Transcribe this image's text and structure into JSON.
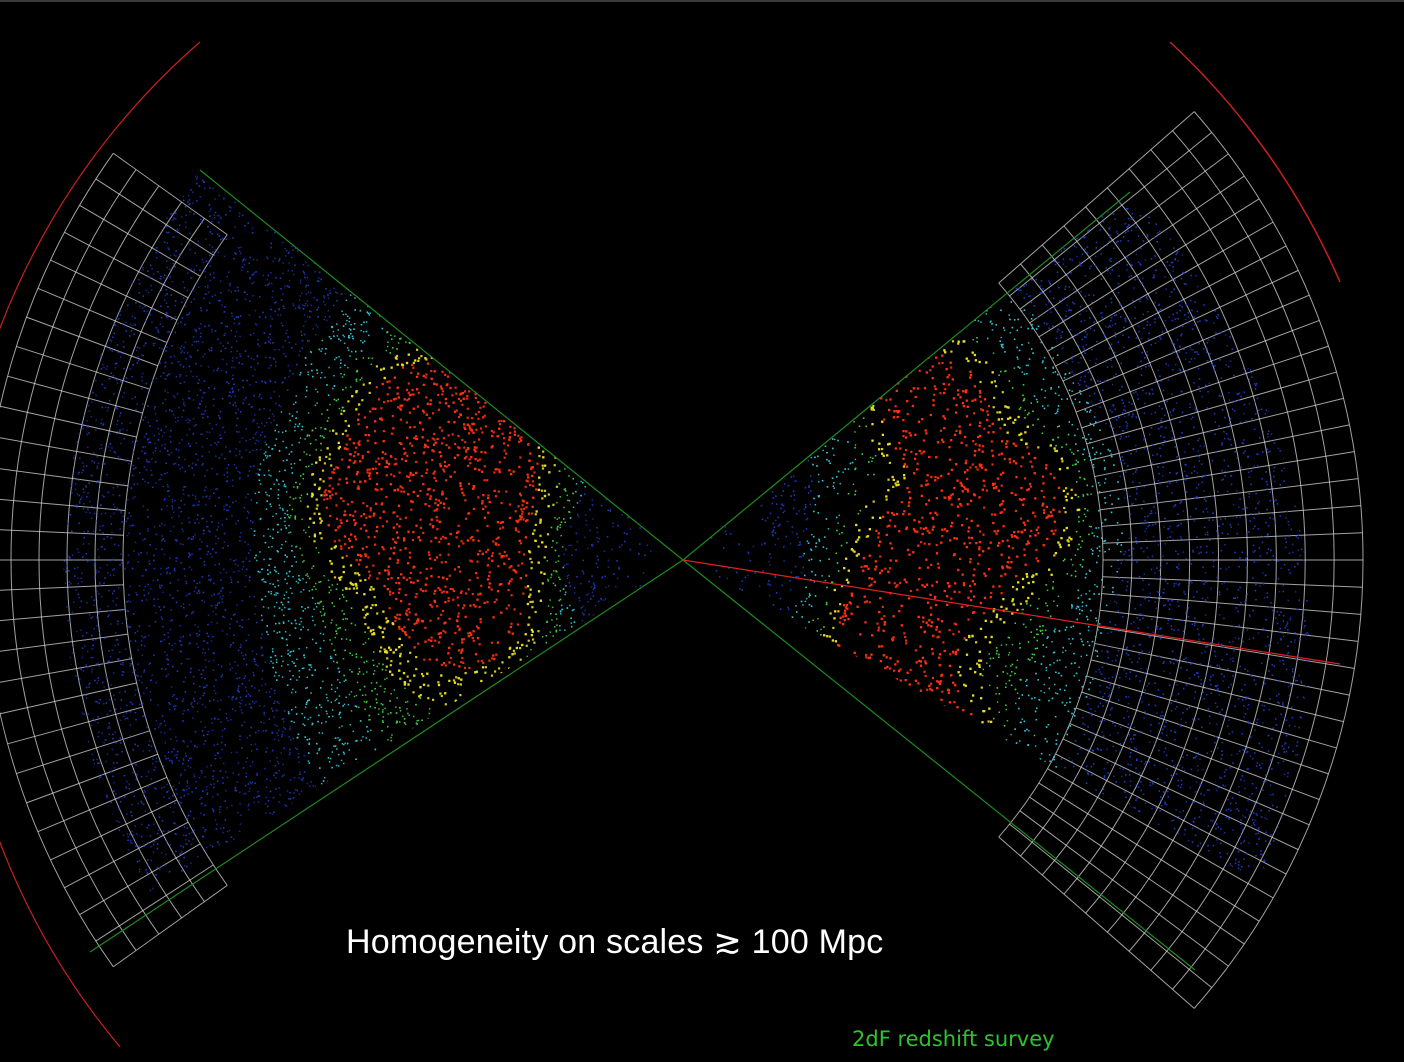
{
  "slide": {
    "caption": "Homogeneity on scales ≳ 100 Mpc",
    "credit": "2dF redshift survey"
  },
  "colors": {
    "background": "#000000",
    "caption_text": "#ffffff",
    "credit_text": "#2fc22f",
    "grid": "#d8d8d8",
    "wedge_edge": "#1f8a1f",
    "red_line": "#e02020",
    "density_low": "#1e3fd0",
    "density_mid_low": "#2ec8d8",
    "density_mid": "#40d040",
    "density_mid_high": "#e8e020",
    "density_high": "#ff3010"
  },
  "image": {
    "subject": "2dF galaxy redshift survey wedge map",
    "wedges": [
      "left-wedge",
      "right-wedge"
    ]
  }
}
